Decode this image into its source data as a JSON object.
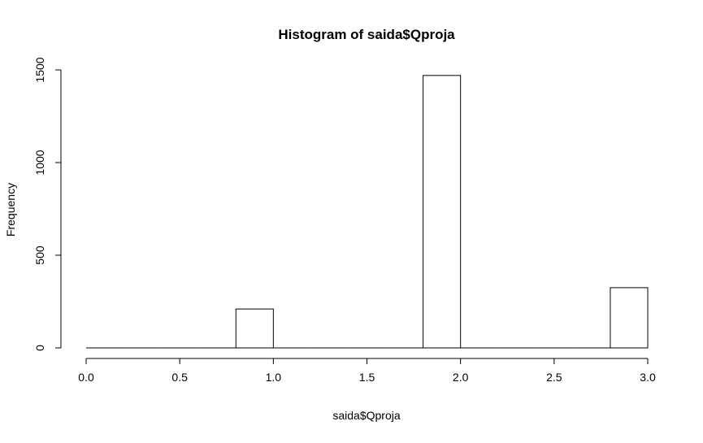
{
  "chart_data": {
    "type": "bar",
    "title": "Histogram of saida$Qproja",
    "xlabel": "saida$Qproja",
    "ylabel": "Frequency",
    "bins": [
      {
        "start": 0.0,
        "end": 0.2,
        "count": 0
      },
      {
        "start": 0.2,
        "end": 0.4,
        "count": 0
      },
      {
        "start": 0.4,
        "end": 0.6,
        "count": 0
      },
      {
        "start": 0.6,
        "end": 0.8,
        "count": 0
      },
      {
        "start": 0.8,
        "end": 1.0,
        "count": 210
      },
      {
        "start": 1.0,
        "end": 1.2,
        "count": 0
      },
      {
        "start": 1.2,
        "end": 1.4,
        "count": 0
      },
      {
        "start": 1.4,
        "end": 1.6,
        "count": 0
      },
      {
        "start": 1.6,
        "end": 1.8,
        "count": 0
      },
      {
        "start": 1.8,
        "end": 2.0,
        "count": 1470
      },
      {
        "start": 2.0,
        "end": 2.2,
        "count": 0
      },
      {
        "start": 2.2,
        "end": 2.4,
        "count": 0
      },
      {
        "start": 2.4,
        "end": 2.6,
        "count": 0
      },
      {
        "start": 2.6,
        "end": 2.8,
        "count": 0
      },
      {
        "start": 2.8,
        "end": 3.0,
        "count": 325
      }
    ],
    "xlim": [
      0,
      3
    ],
    "ylim": [
      0,
      1500
    ],
    "xticks": [
      "0.0",
      "0.5",
      "1.0",
      "1.5",
      "2.0",
      "2.5",
      "3.0"
    ],
    "yticks": [
      "0",
      "500",
      "1000",
      "1500"
    ],
    "grid": false,
    "colors": {
      "bar_fill": "#ffffff",
      "bar_stroke": "#000000"
    }
  }
}
